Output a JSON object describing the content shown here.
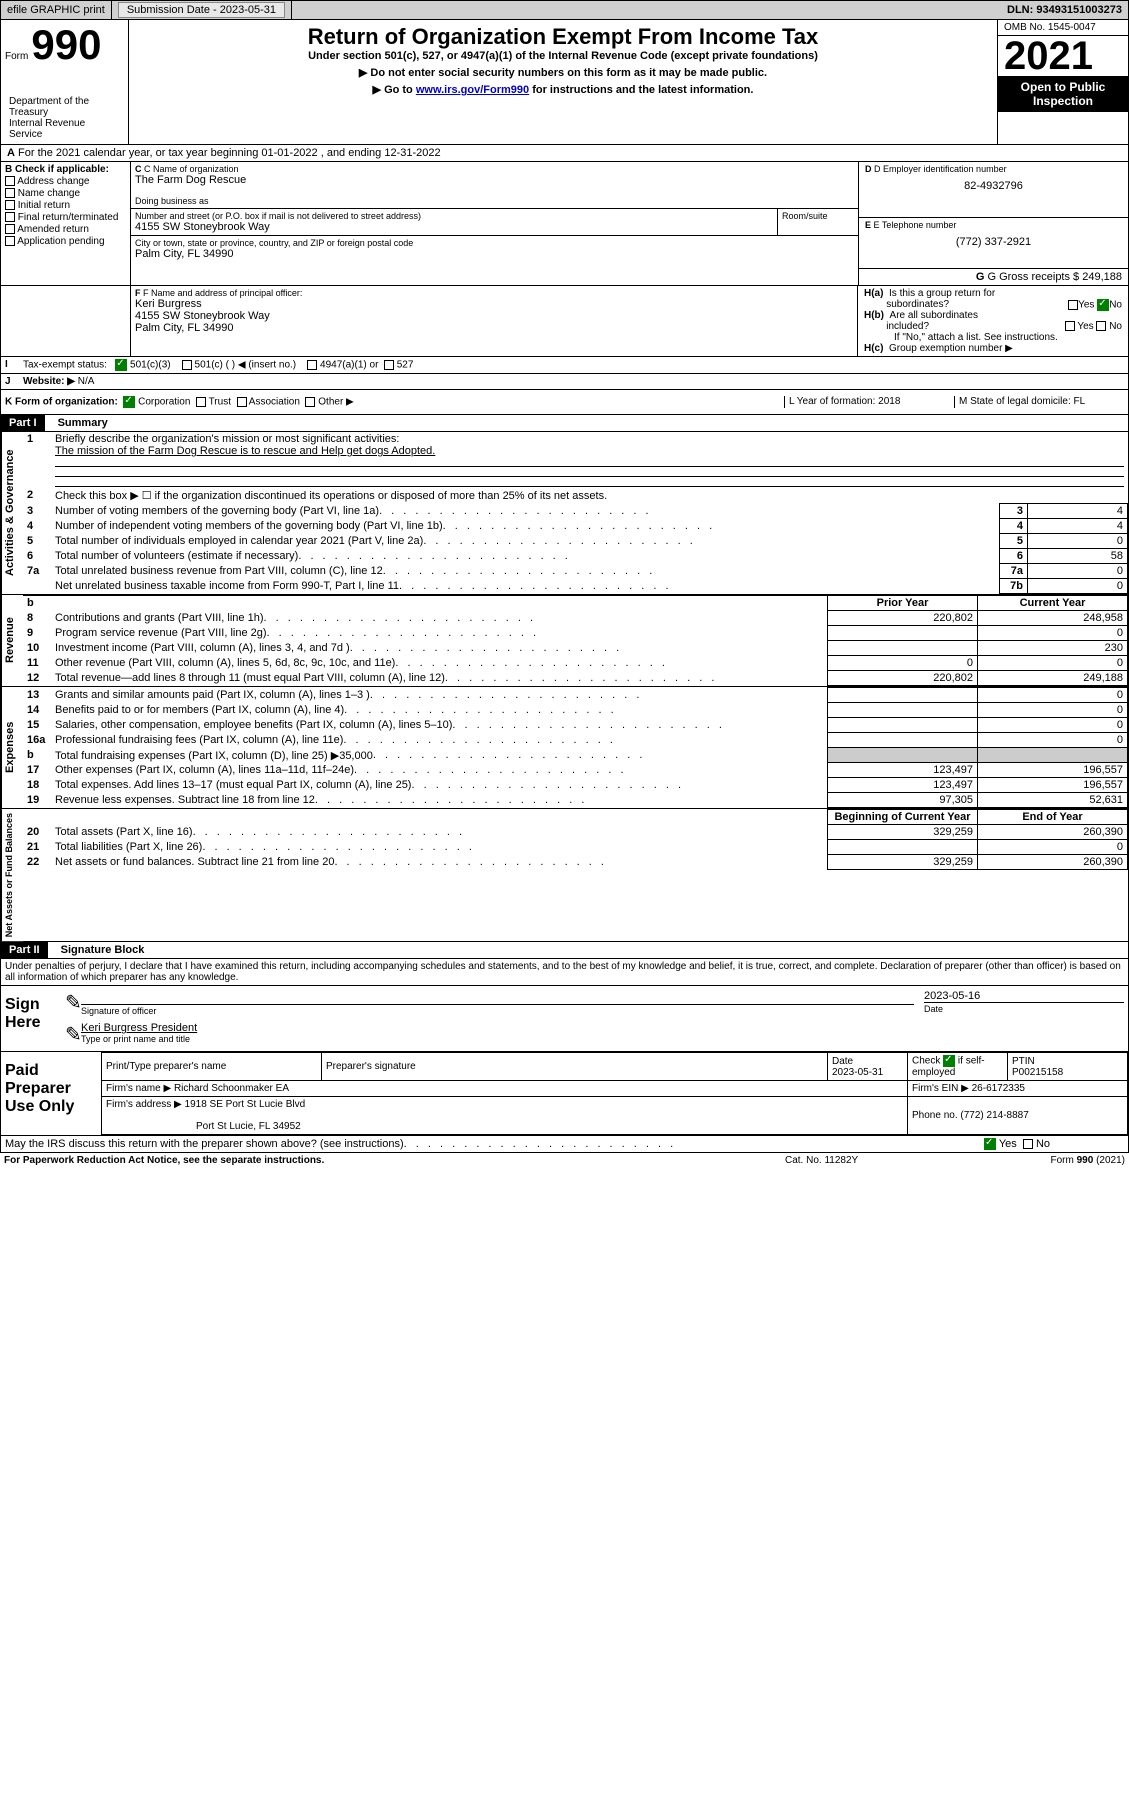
{
  "header": {
    "efile": "efile GRAPHIC print",
    "submission_label": "Submission Date - 2023-05-31",
    "dln": "DLN: 93493151003273"
  },
  "titlebox": {
    "form_label": "Form",
    "form_number": "990",
    "dept1": "Department of the Treasury",
    "dept2": "Internal Revenue Service",
    "title": "Return of Organization Exempt From Income Tax",
    "subtitle": "Under section 501(c), 527, or 4947(a)(1) of the Internal Revenue Code (except private foundations)",
    "instr1": "▶ Do not enter social security numbers on this form as it may be made public.",
    "instr2_pre": "▶ Go to ",
    "instr2_link": "www.irs.gov/Form990",
    "instr2_post": " for instructions and the latest information.",
    "omb": "OMB No. 1545-0047",
    "year": "2021",
    "inspect1": "Open to Public",
    "inspect2": "Inspection"
  },
  "section_a": {
    "text": "For the 2021 calendar year, or tax year beginning 01-01-2022    , and ending 12-31-2022",
    "prefix": "A"
  },
  "section_b": {
    "label": "B Check if applicable:",
    "items": [
      "Address change",
      "Name change",
      "Initial return",
      "Final return/terminated",
      "Amended return",
      "Application pending"
    ]
  },
  "section_c": {
    "name_label": "C Name of organization",
    "name": "The Farm Dog Rescue",
    "dba_label": "Doing business as",
    "dba": "",
    "addr_label": "Number and street (or P.O. box if mail is not delivered to street address)",
    "room_label": "Room/suite",
    "addr": "4155 SW Stoneybrook Way",
    "city_label": "City or town, state or province, country, and ZIP or foreign postal code",
    "city": "Palm City, FL  34990"
  },
  "section_d": {
    "label": "D Employer identification number",
    "value": "82-4932796"
  },
  "section_e": {
    "label": "E Telephone number",
    "value": "(772) 337-2921"
  },
  "section_g": {
    "label": "G Gross receipts $",
    "value": "249,188"
  },
  "section_f": {
    "label": "F  Name and address of principal officer:",
    "name": "Keri Burgress",
    "addr1": "4155 SW Stoneybrook Way",
    "addr2": "Palm City, FL  34990"
  },
  "section_h": {
    "ha": "H(a)  Is this a group return for subordinates?",
    "hb": "H(b)  Are all subordinates included?",
    "hb_note": "If \"No,\" attach a list. See instructions.",
    "hc": "H(c)  Group exemption number ▶",
    "yes": "Yes",
    "no": "No"
  },
  "section_i": {
    "label": "Tax-exempt status:",
    "opt1": "501(c)(3)",
    "opt2": "501(c) (  ) ◀ (insert no.)",
    "opt3": "4947(a)(1) or",
    "opt4": "527"
  },
  "section_j": {
    "label": "Website: ▶",
    "value": "N/A"
  },
  "section_k": {
    "label": "K Form of organization:",
    "corp": "Corporation",
    "trust": "Trust",
    "assoc": "Association",
    "other": "Other ▶"
  },
  "section_l": {
    "label": "L Year of formation: 2018"
  },
  "section_m": {
    "label": "M State of legal domicile: FL"
  },
  "part1": {
    "header": "Part I",
    "title": "Summary",
    "line1_label": "Briefly describe the organization's mission or most significant activities:",
    "line1_text": "The mission of the Farm Dog Rescue is to rescue and Help get dogs Adopted.",
    "line2": "Check this box ▶ ☐  if the organization discontinued its operations or disposed of more than 25% of its net assets.",
    "rows_gov": [
      {
        "n": "3",
        "t": "Number of voting members of the governing body (Part VI, line 1a)",
        "b": "3",
        "v": "4"
      },
      {
        "n": "4",
        "t": "Number of independent voting members of the governing body (Part VI, line 1b)",
        "b": "4",
        "v": "4"
      },
      {
        "n": "5",
        "t": "Total number of individuals employed in calendar year 2021 (Part V, line 2a)",
        "b": "5",
        "v": "0"
      },
      {
        "n": "6",
        "t": "Total number of volunteers (estimate if necessary)",
        "b": "6",
        "v": "58"
      },
      {
        "n": "7a",
        "t": "Total unrelated business revenue from Part VIII, column (C), line 12",
        "b": "7a",
        "v": "0"
      },
      {
        "n": "",
        "t": "Net unrelated business taxable income from Form 990-T, Part I, line 11",
        "b": "7b",
        "v": "0"
      }
    ],
    "col_prior": "Prior Year",
    "col_current": "Current Year",
    "rows_rev": [
      {
        "n": "8",
        "t": "Contributions and grants (Part VIII, line 1h)",
        "p": "220,802",
        "c": "248,958"
      },
      {
        "n": "9",
        "t": "Program service revenue (Part VIII, line 2g)",
        "p": "",
        "c": "0"
      },
      {
        "n": "10",
        "t": "Investment income (Part VIII, column (A), lines 3, 4, and 7d )",
        "p": "",
        "c": "230"
      },
      {
        "n": "11",
        "t": "Other revenue (Part VIII, column (A), lines 5, 6d, 8c, 9c, 10c, and 11e)",
        "p": "0",
        "c": "0"
      },
      {
        "n": "12",
        "t": "Total revenue—add lines 8 through 11 (must equal Part VIII, column (A), line 12)",
        "p": "220,802",
        "c": "249,188"
      }
    ],
    "rows_exp": [
      {
        "n": "13",
        "t": "Grants and similar amounts paid (Part IX, column (A), lines 1–3 )",
        "p": "",
        "c": "0"
      },
      {
        "n": "14",
        "t": "Benefits paid to or for members (Part IX, column (A), line 4)",
        "p": "",
        "c": "0"
      },
      {
        "n": "15",
        "t": "Salaries, other compensation, employee benefits (Part IX, column (A), lines 5–10)",
        "p": "",
        "c": "0"
      },
      {
        "n": "16a",
        "t": "Professional fundraising fees (Part IX, column (A), line 11e)",
        "p": "",
        "c": "0"
      },
      {
        "n": "b",
        "t": "Total fundraising expenses (Part IX, column (D), line 25) ▶35,000",
        "p": "GRAY",
        "c": "GRAY"
      },
      {
        "n": "17",
        "t": "Other expenses (Part IX, column (A), lines 11a–11d, 11f–24e)",
        "p": "123,497",
        "c": "196,557"
      },
      {
        "n": "18",
        "t": "Total expenses. Add lines 13–17 (must equal Part IX, column (A), line 25)",
        "p": "123,497",
        "c": "196,557"
      },
      {
        "n": "19",
        "t": "Revenue less expenses. Subtract line 18 from line 12",
        "p": "97,305",
        "c": "52,631"
      }
    ],
    "col_begin": "Beginning of Current Year",
    "col_end": "End of Year",
    "rows_net": [
      {
        "n": "20",
        "t": "Total assets (Part X, line 16)",
        "p": "329,259",
        "c": "260,390"
      },
      {
        "n": "21",
        "t": "Total liabilities (Part X, line 26)",
        "p": "",
        "c": "0"
      },
      {
        "n": "22",
        "t": "Net assets or fund balances. Subtract line 21 from line 20",
        "p": "329,259",
        "c": "260,390"
      }
    ],
    "vert_gov": "Activities & Governance",
    "vert_rev": "Revenue",
    "vert_exp": "Expenses",
    "vert_net": "Net Assets or Fund Balances"
  },
  "part2": {
    "header": "Part II",
    "title": "Signature Block",
    "decl": "Under penalties of perjury, I declare that I have examined this return, including accompanying schedules and statements, and to the best of my knowledge and belief, it is true, correct, and complete. Declaration of preparer (other than officer) is based on all information of which preparer has any knowledge.",
    "sign_here": "Sign Here",
    "sig_officer": "Signature of officer",
    "sig_date": "2023-05-16",
    "date_label": "Date",
    "officer_name": "Keri Burgress  President",
    "officer_label": "Type or print name and title",
    "paid": "Paid Preparer Use Only",
    "prep_name_label": "Print/Type preparer's name",
    "prep_sig_label": "Preparer's signature",
    "prep_date_label": "Date",
    "prep_date": "2023-05-31",
    "check_if": "Check",
    "self_emp": "if self-employed",
    "ptin_label": "PTIN",
    "ptin": "P00215158",
    "firm_name_label": "Firm's name   ▶",
    "firm_name": "Richard Schoonmaker EA",
    "firm_ein_label": "Firm's EIN ▶",
    "firm_ein": "26-6172335",
    "firm_addr_label": "Firm's address ▶",
    "firm_addr1": "1918 SE Port St Lucie Blvd",
    "firm_addr2": "Port St Lucie, FL  34952",
    "phone_label": "Phone no.",
    "phone": "(772) 214-8887",
    "may_irs": "May the IRS discuss this return with the preparer shown above? (see instructions)",
    "footer_left": "For Paperwork Reduction Act Notice, see the separate instructions.",
    "footer_mid": "Cat. No. 11282Y",
    "footer_right": "Form 990 (2021)"
  }
}
